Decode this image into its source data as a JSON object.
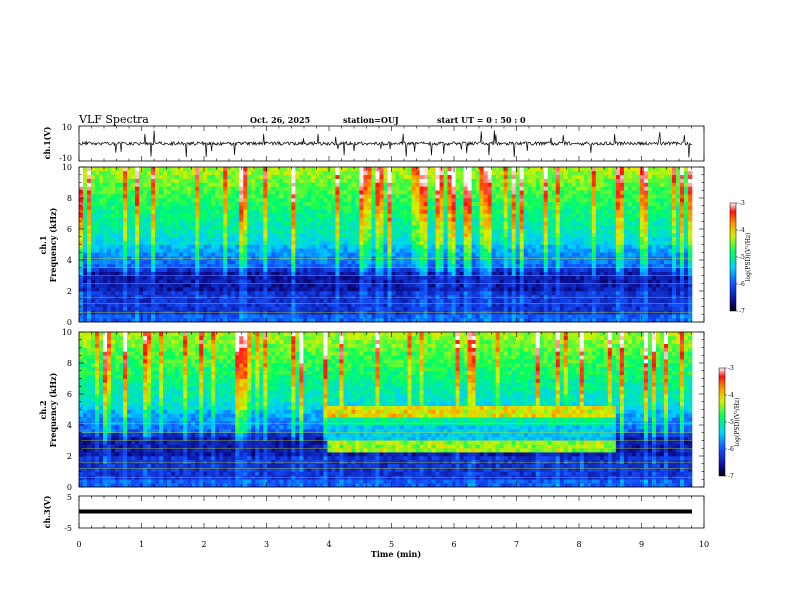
{
  "header": {
    "title": "VLF Spectra",
    "date": "Oct. 26, 2025",
    "station": "station=OUJ",
    "start": "start  UT =   0 : 50 : 0"
  },
  "chart_data": [
    {
      "type": "line",
      "panel": "ch1-waveform",
      "ylabel": "ch.1(V)",
      "ylim": [
        -10,
        10
      ],
      "y_ticks": [
        "10",
        "-10"
      ],
      "description_level": 0
    },
    {
      "type": "heatmap",
      "panel": "ch1-spectrogram",
      "ylabel_line1": "ch.1",
      "ylabel_line2": "Frequency (kHz)",
      "ylim": [
        0,
        10
      ],
      "y_ticks": [
        "0",
        "2",
        "4",
        "6",
        "8",
        "10"
      ],
      "colorbar": {
        "label": "log(PSD)(V²/Hz)",
        "range": [
          -7,
          -3
        ],
        "ticks": [
          "-3",
          "-4",
          "-5",
          "-6",
          "-7"
        ]
      }
    },
    {
      "type": "heatmap",
      "panel": "ch2-spectrogram",
      "ylabel_line1": "ch.2",
      "ylabel_line2": "Frequency (kHz)",
      "ylim": [
        0,
        10
      ],
      "y_ticks": [
        "0",
        "2",
        "4",
        "6",
        "8",
        "10"
      ],
      "colorbar": {
        "label": "log(PSD)(V²/Hz)",
        "range": [
          -7,
          -3
        ],
        "ticks": [
          "-3",
          "-4",
          "-5",
          "-6",
          "-7"
        ]
      }
    },
    {
      "type": "line",
      "panel": "ch3-waveform",
      "ylabel": "ch.3(V)",
      "ylim": [
        -5,
        5
      ],
      "y_ticks": [
        "5",
        "0",
        "-5"
      ],
      "description_level": -1
    }
  ],
  "xaxis": {
    "label": "Time  (min)",
    "range": [
      0,
      10
    ],
    "ticks": [
      "0",
      "1",
      "2",
      "3",
      "4",
      "5",
      "6",
      "7",
      "8",
      "9",
      "10"
    ]
  }
}
